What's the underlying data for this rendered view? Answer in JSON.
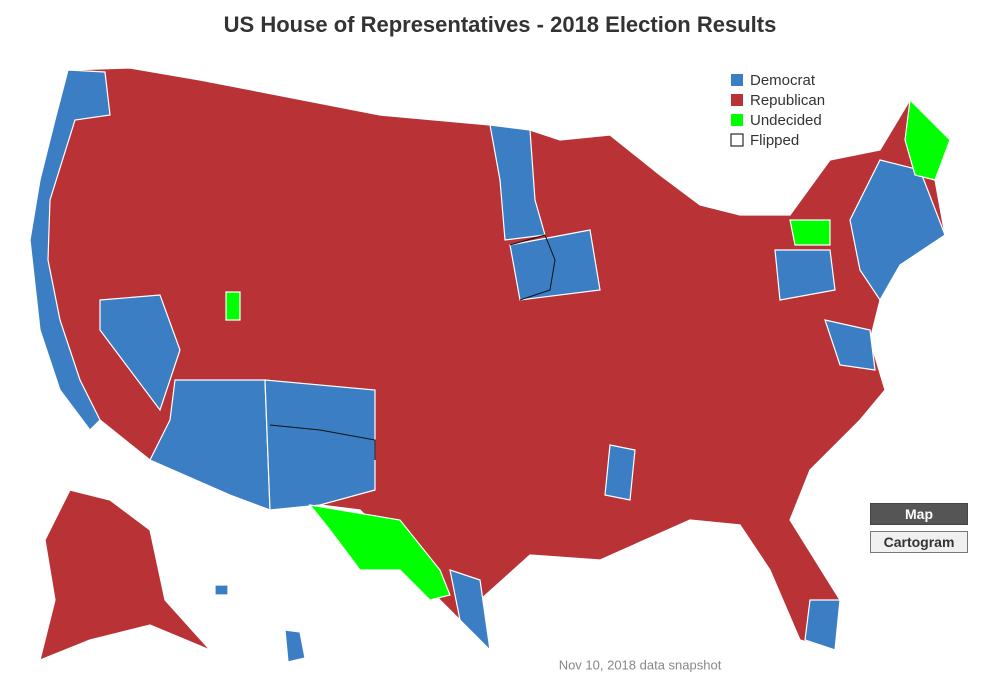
{
  "title": "US House of Representatives - 2018 Election Results",
  "legend": [
    {
      "label": "Democrat",
      "color": "#3b7ec3"
    },
    {
      "label": "Republican",
      "color": "#b83236"
    },
    {
      "label": "Undecided",
      "color": "#00ff00"
    },
    {
      "label": "Flipped",
      "color": "#ffffff"
    }
  ],
  "buttons": [
    "Map",
    "Cartogram"
  ],
  "footnote": "Nov 10, 2018 data snapshot"
}
